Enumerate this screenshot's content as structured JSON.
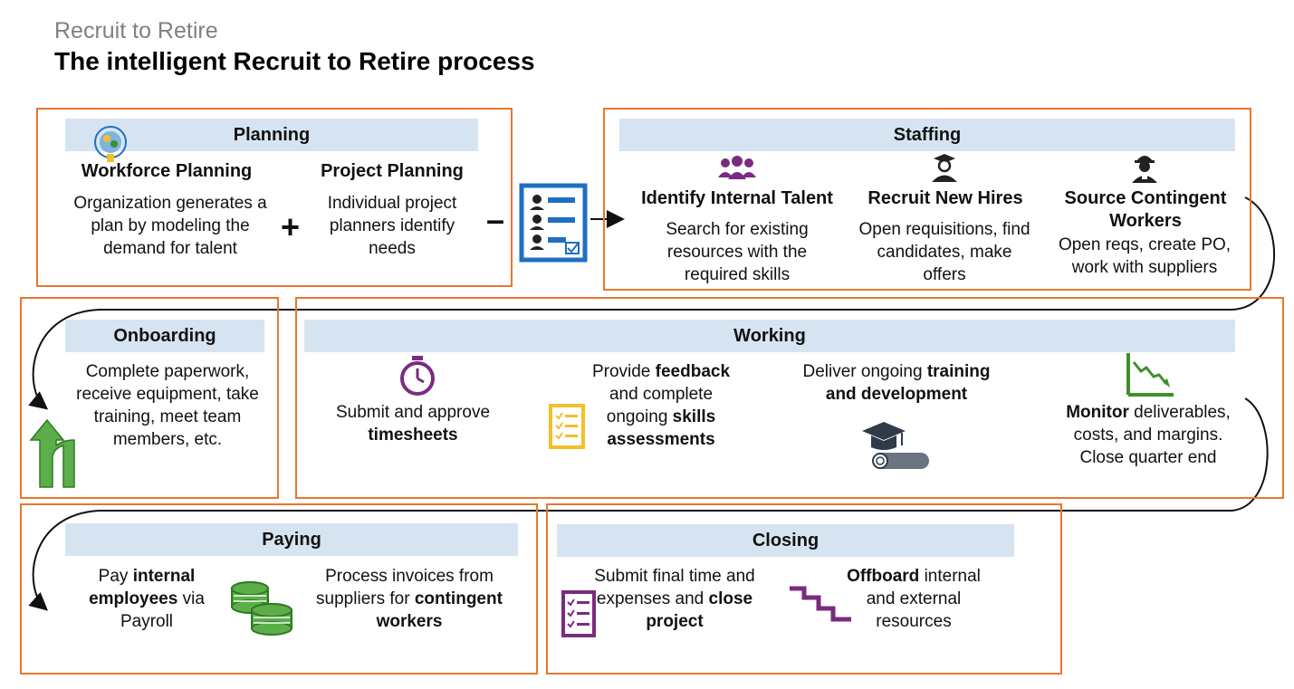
{
  "header": {
    "subtitle": "Recruit to Retire",
    "title": "The intelligent Recruit to Retire process"
  },
  "planning": {
    "label": "Planning",
    "workforce": {
      "heading": "Workforce Planning",
      "text": "Organization generates a plan by modeling the demand for talent"
    },
    "plus": "+",
    "project": {
      "heading": "Project Planning",
      "text": "Individual project planners identify needs"
    },
    "minus": "–"
  },
  "staffing": {
    "label": "Staffing",
    "internal": {
      "heading": "Identify Internal Talent",
      "text": "Search for existing resources with the required skills"
    },
    "hires": {
      "heading": "Recruit New Hires",
      "text": "Open requisitions, find candidates, make offers"
    },
    "contingent": {
      "heading": "Source Contingent Workers",
      "text": "Open reqs, create PO, work with suppliers"
    }
  },
  "onboarding": {
    "label": "Onboarding",
    "text": "Complete paperwork, receive equipment, take training, meet team members, etc."
  },
  "working": {
    "label": "Working",
    "timesheets": {
      "pre": "Submit and approve",
      "bold": "timesheets"
    },
    "feedback": {
      "pre": "Provide",
      "bold1": "feedback",
      "mid": "and complete ongoing",
      "bold2": "skills assessments"
    },
    "training": {
      "pre": "Deliver ongoing",
      "bold": "training and development"
    },
    "monitor": {
      "bold": "Monitor",
      "post": "deliverables, costs, and margins. Close quarter end"
    }
  },
  "paying": {
    "label": "Paying",
    "internal": {
      "pre": "Pay",
      "bold1": "internal employees",
      "post": "via Payroll"
    },
    "invoices": {
      "pre": "Process invoices from suppliers for",
      "bold": "contingent workers"
    }
  },
  "closing": {
    "label": "Closing",
    "submit": {
      "pre": "Submit final time and expenses and",
      "bold": "close project"
    },
    "offboard": {
      "bold": "Offboard",
      "post": "internal and external resources"
    }
  },
  "icons": {
    "workforce": "head-gears-icon",
    "checklist": "candidate-checklist-icon",
    "internal": "group-people-icon",
    "hires": "graduate-person-icon",
    "contingent": "worker-hardhat-icon",
    "onboarding": "merge-arrow-icon",
    "timesheets": "stopwatch-icon",
    "feedback": "checklist-icon",
    "training": "graduation-cap-diploma-icon",
    "monitor": "downtrend-chart-icon",
    "paying": "coin-stacks-icon",
    "closing_submit": "checklist-icon",
    "offboard": "descending-steps-icon"
  },
  "colors": {
    "box_border": "#e8772e",
    "band": "#d6e4f2",
    "purple": "#7b2b7f",
    "green": "#3f8f2c",
    "yellow": "#f2c028",
    "blue": "#1f6fc1",
    "dark": "#222222"
  }
}
